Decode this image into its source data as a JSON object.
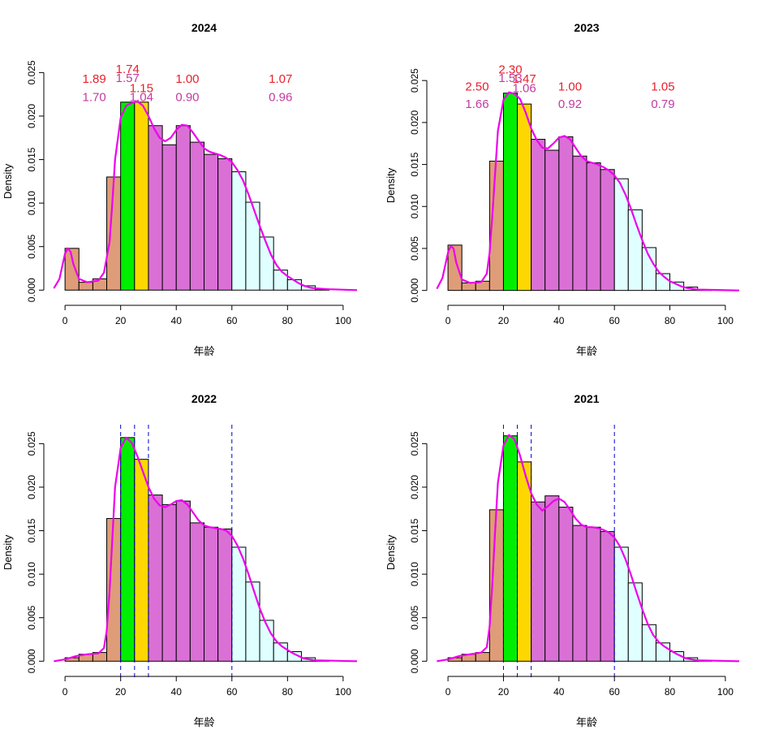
{
  "chart_data": [
    {
      "type": "histogram",
      "title": "2024",
      "xlabel": "年龄",
      "ylabel": "Density",
      "xlim": [
        0,
        105
      ],
      "ylim": [
        0,
        0.025
      ],
      "xticks": [
        "0",
        "20",
        "40",
        "60",
        "80",
        "100"
      ],
      "yticks": [
        "0.000",
        "0.005",
        "0.010",
        "0.015",
        "0.020",
        "0.025"
      ],
      "bin_edges": [
        0,
        5,
        10,
        15,
        20,
        25,
        30,
        35,
        40,
        45,
        50,
        55,
        60,
        65,
        70,
        75,
        80,
        85,
        90,
        95
      ],
      "densities": [
        0.0048,
        0.0009,
        0.0013,
        0.013,
        0.0216,
        0.0216,
        0.0189,
        0.0167,
        0.0189,
        0.017,
        0.0156,
        0.0151,
        0.0136,
        0.0101,
        0.0061,
        0.0023,
        0.0012,
        0.0005,
        0.0001
      ],
      "bin_colors": [
        "#df9c78",
        "#df9c78",
        "#df9c78",
        "#df9c78",
        "#00ee00",
        "#ffd700",
        "#da70d6",
        "#da70d6",
        "#da70d6",
        "#da70d6",
        "#da70d6",
        "#da70d6",
        "#e0ffff",
        "#e0ffff",
        "#e0ffff",
        "#e0ffff",
        "#e0ffff",
        "#e0ffff",
        "#e0ffff"
      ],
      "density_curve": [
        [
          -4,
          0.0002
        ],
        [
          -2,
          0.0013
        ],
        [
          0,
          0.0042
        ],
        [
          1,
          0.0048
        ],
        [
          2,
          0.0044
        ],
        [
          3,
          0.003
        ],
        [
          5,
          0.0013
        ],
        [
          8,
          0.0009
        ],
        [
          12,
          0.0011
        ],
        [
          14,
          0.002
        ],
        [
          16,
          0.0055
        ],
        [
          17,
          0.01
        ],
        [
          18,
          0.015
        ],
        [
          20,
          0.0198
        ],
        [
          22,
          0.0212
        ],
        [
          24,
          0.0215
        ],
        [
          26,
          0.0217
        ],
        [
          28,
          0.0212
        ],
        [
          30,
          0.02
        ],
        [
          32,
          0.0186
        ],
        [
          34,
          0.0175
        ],
        [
          36,
          0.0171
        ],
        [
          38,
          0.0175
        ],
        [
          40,
          0.0184
        ],
        [
          42,
          0.019
        ],
        [
          44,
          0.0189
        ],
        [
          46,
          0.0181
        ],
        [
          48,
          0.0172
        ],
        [
          50,
          0.0163
        ],
        [
          52,
          0.0159
        ],
        [
          54,
          0.0157
        ],
        [
          56,
          0.0155
        ],
        [
          58,
          0.0152
        ],
        [
          60,
          0.0147
        ],
        [
          62,
          0.0138
        ],
        [
          64,
          0.0126
        ],
        [
          66,
          0.011
        ],
        [
          68,
          0.0092
        ],
        [
          70,
          0.0074
        ],
        [
          72,
          0.0057
        ],
        [
          74,
          0.0041
        ],
        [
          76,
          0.0029
        ],
        [
          78,
          0.0021
        ],
        [
          80,
          0.0016
        ],
        [
          82,
          0.0012
        ],
        [
          84,
          0.0008
        ],
        [
          86,
          0.0005
        ],
        [
          88,
          0.0003
        ],
        [
          90,
          0.0002
        ],
        [
          95,
          0.0001
        ],
        [
          105,
          0.0
        ]
      ],
      "curve_color": "#ee00ee",
      "vlines": [],
      "annotations_red": [
        {
          "text": "1.89",
          "x": 10.5,
          "y": 0.0243
        },
        {
          "text": "1.74",
          "x": 22.5,
          "y": 0.0254
        },
        {
          "text": "1.15",
          "x": 27.5,
          "y": 0.0232
        },
        {
          "text": "1.00",
          "x": 44,
          "y": 0.0243
        },
        {
          "text": "1.07",
          "x": 77.5,
          "y": 0.0243
        }
      ],
      "annotations_mag": [
        {
          "text": "1.70",
          "x": 10.5,
          "y": 0.0222
        },
        {
          "text": "1.57",
          "x": 22.5,
          "y": 0.0244
        },
        {
          "text": "1.04",
          "x": 27.5,
          "y": 0.0222
        },
        {
          "text": "0.90",
          "x": 44,
          "y": 0.0222
        },
        {
          "text": "0.96",
          "x": 77.5,
          "y": 0.0222
        }
      ]
    },
    {
      "type": "histogram",
      "title": "2023",
      "xlabel": "年龄",
      "ylabel": "Density",
      "xlim": [
        0,
        105
      ],
      "ylim": [
        0,
        0.025
      ],
      "xticks": [
        "0",
        "20",
        "40",
        "60",
        "80",
        "100"
      ],
      "yticks": [
        "0.000",
        "0.005",
        "0.010",
        "0.015",
        "0.020",
        "0.025"
      ],
      "bin_edges": [
        0,
        5,
        10,
        15,
        20,
        25,
        30,
        35,
        40,
        45,
        50,
        55,
        60,
        65,
        70,
        75,
        80,
        85,
        90,
        95
      ],
      "densities": [
        0.0054,
        0.0009,
        0.0011,
        0.0154,
        0.0235,
        0.0222,
        0.018,
        0.0167,
        0.0183,
        0.016,
        0.0152,
        0.0144,
        0.0133,
        0.0096,
        0.0051,
        0.002,
        0.001,
        0.0004,
        0.0001
      ],
      "bin_colors": [
        "#df9c78",
        "#df9c78",
        "#df9c78",
        "#df9c78",
        "#00ee00",
        "#ffd700",
        "#da70d6",
        "#da70d6",
        "#da70d6",
        "#da70d6",
        "#da70d6",
        "#da70d6",
        "#e0ffff",
        "#e0ffff",
        "#e0ffff",
        "#e0ffff",
        "#e0ffff",
        "#e0ffff",
        "#e0ffff"
      ],
      "density_curve": [
        [
          -4,
          0.0002
        ],
        [
          -2,
          0.0015
        ],
        [
          0,
          0.0045
        ],
        [
          1,
          0.0053
        ],
        [
          2,
          0.005
        ],
        [
          3,
          0.0033
        ],
        [
          5,
          0.0013
        ],
        [
          8,
          0.0009
        ],
        [
          12,
          0.001
        ],
        [
          14,
          0.002
        ],
        [
          15,
          0.0045
        ],
        [
          16,
          0.009
        ],
        [
          17,
          0.014
        ],
        [
          18,
          0.019
        ],
        [
          20,
          0.0227
        ],
        [
          22,
          0.0236
        ],
        [
          24,
          0.0234
        ],
        [
          26,
          0.0228
        ],
        [
          28,
          0.0212
        ],
        [
          30,
          0.0193
        ],
        [
          32,
          0.0179
        ],
        [
          34,
          0.017
        ],
        [
          36,
          0.0169
        ],
        [
          38,
          0.0175
        ],
        [
          40,
          0.0182
        ],
        [
          42,
          0.0184
        ],
        [
          44,
          0.018
        ],
        [
          46,
          0.017
        ],
        [
          48,
          0.016
        ],
        [
          50,
          0.0154
        ],
        [
          52,
          0.0152
        ],
        [
          54,
          0.015
        ],
        [
          56,
          0.0147
        ],
        [
          58,
          0.0143
        ],
        [
          60,
          0.0137
        ],
        [
          62,
          0.0128
        ],
        [
          64,
          0.0114
        ],
        [
          66,
          0.0097
        ],
        [
          68,
          0.0078
        ],
        [
          70,
          0.006
        ],
        [
          72,
          0.0044
        ],
        [
          74,
          0.0032
        ],
        [
          76,
          0.0022
        ],
        [
          78,
          0.0016
        ],
        [
          80,
          0.0011
        ],
        [
          82,
          0.0008
        ],
        [
          84,
          0.0005
        ],
        [
          86,
          0.0003
        ],
        [
          90,
          0.0001
        ],
        [
          105,
          0.0
        ]
      ],
      "curve_color": "#ee00ee",
      "vlines": [],
      "annotations_red": [
        {
          "text": "2.50",
          "x": 10.5,
          "y": 0.0243
        },
        {
          "text": "2.30",
          "x": 22.5,
          "y": 0.0263
        },
        {
          "text": "1.47",
          "x": 27.5,
          "y": 0.0252
        },
        {
          "text": "1.00",
          "x": 44,
          "y": 0.0243
        },
        {
          "text": "1.05",
          "x": 77.5,
          "y": 0.0243
        }
      ],
      "annotations_mag": [
        {
          "text": "1.66",
          "x": 10.5,
          "y": 0.0222
        },
        {
          "text": "1.53",
          "x": 22.5,
          "y": 0.0253
        },
        {
          "text": "1.06",
          "x": 27.5,
          "y": 0.0241
        },
        {
          "text": "0.92",
          "x": 44,
          "y": 0.0222
        },
        {
          "text": "0.79",
          "x": 77.5,
          "y": 0.0222
        }
      ]
    },
    {
      "type": "histogram",
      "title": "2022",
      "xlabel": "年龄",
      "ylabel": "Density",
      "xlim": [
        0,
        105
      ],
      "ylim": [
        0,
        0.025
      ],
      "xticks": [
        "0",
        "20",
        "40",
        "60",
        "80",
        "100"
      ],
      "yticks": [
        "0.000",
        "0.005",
        "0.010",
        "0.015",
        "0.020",
        "0.025"
      ],
      "bin_edges": [
        0,
        5,
        10,
        15,
        20,
        25,
        30,
        35,
        40,
        45,
        50,
        55,
        60,
        65,
        70,
        75,
        80,
        85,
        90,
        95
      ],
      "densities": [
        0.0004,
        0.0008,
        0.001,
        0.0164,
        0.0257,
        0.0232,
        0.0191,
        0.018,
        0.0184,
        0.0159,
        0.0154,
        0.0152,
        0.0131,
        0.0091,
        0.0047,
        0.0021,
        0.0011,
        0.0004,
        0.0001
      ],
      "bin_colors": [
        "#df9c78",
        "#df9c78",
        "#df9c78",
        "#df9c78",
        "#00ee00",
        "#ffd700",
        "#da70d6",
        "#da70d6",
        "#da70d6",
        "#da70d6",
        "#da70d6",
        "#da70d6",
        "#e0ffff",
        "#e0ffff",
        "#e0ffff",
        "#e0ffff",
        "#e0ffff",
        "#e0ffff",
        "#e0ffff"
      ],
      "density_curve": [
        [
          -4,
          0.0
        ],
        [
          0,
          0.0002
        ],
        [
          4,
          0.0006
        ],
        [
          8,
          0.0008
        ],
        [
          12,
          0.0009
        ],
        [
          14,
          0.0015
        ],
        [
          15,
          0.0035
        ],
        [
          16,
          0.008
        ],
        [
          17,
          0.014
        ],
        [
          18,
          0.02
        ],
        [
          20,
          0.0245
        ],
        [
          22,
          0.0257
        ],
        [
          24,
          0.0251
        ],
        [
          26,
          0.0236
        ],
        [
          28,
          0.0218
        ],
        [
          30,
          0.02
        ],
        [
          32,
          0.0187
        ],
        [
          34,
          0.0179
        ],
        [
          36,
          0.0177
        ],
        [
          38,
          0.018
        ],
        [
          40,
          0.0184
        ],
        [
          42,
          0.0185
        ],
        [
          44,
          0.018
        ],
        [
          46,
          0.0171
        ],
        [
          48,
          0.0162
        ],
        [
          50,
          0.0156
        ],
        [
          52,
          0.0154
        ],
        [
          54,
          0.0153
        ],
        [
          56,
          0.0152
        ],
        [
          58,
          0.015
        ],
        [
          60,
          0.0144
        ],
        [
          62,
          0.0133
        ],
        [
          64,
          0.0118
        ],
        [
          66,
          0.01
        ],
        [
          68,
          0.008
        ],
        [
          70,
          0.0061
        ],
        [
          72,
          0.0045
        ],
        [
          74,
          0.0032
        ],
        [
          76,
          0.0023
        ],
        [
          78,
          0.0017
        ],
        [
          80,
          0.0013
        ],
        [
          82,
          0.0009
        ],
        [
          84,
          0.0006
        ],
        [
          86,
          0.0003
        ],
        [
          90,
          0.0001
        ],
        [
          105,
          0.0
        ]
      ],
      "curve_color": "#ee00ee",
      "vlines": [
        20,
        25,
        30,
        60
      ],
      "annotations_red": [],
      "annotations_mag": []
    },
    {
      "type": "histogram",
      "title": "2021",
      "xlabel": "年龄",
      "ylabel": "Density",
      "xlim": [
        0,
        105
      ],
      "ylim": [
        0,
        0.025
      ],
      "xticks": [
        "0",
        "20",
        "40",
        "60",
        "80",
        "100"
      ],
      "yticks": [
        "0.000",
        "0.005",
        "0.010",
        "0.015",
        "0.020",
        "0.025"
      ],
      "bin_edges": [
        0,
        5,
        10,
        15,
        20,
        25,
        30,
        35,
        40,
        45,
        50,
        55,
        60,
        65,
        70,
        75,
        80,
        85,
        90,
        95
      ],
      "densities": [
        0.0004,
        0.0008,
        0.001,
        0.0174,
        0.0259,
        0.0229,
        0.0183,
        0.019,
        0.0177,
        0.0156,
        0.0154,
        0.0149,
        0.0131,
        0.009,
        0.0042,
        0.0021,
        0.0011,
        0.0004,
        0.0001
      ],
      "bin_colors": [
        "#df9c78",
        "#df9c78",
        "#df9c78",
        "#df9c78",
        "#00ee00",
        "#ffd700",
        "#da70d6",
        "#da70d6",
        "#da70d6",
        "#da70d6",
        "#da70d6",
        "#da70d6",
        "#e0ffff",
        "#e0ffff",
        "#e0ffff",
        "#e0ffff",
        "#e0ffff",
        "#e0ffff",
        "#e0ffff"
      ],
      "density_curve": [
        [
          -4,
          0.0
        ],
        [
          0,
          0.0002
        ],
        [
          4,
          0.0006
        ],
        [
          8,
          0.0008
        ],
        [
          12,
          0.001
        ],
        [
          14,
          0.0016
        ],
        [
          15,
          0.004
        ],
        [
          16,
          0.009
        ],
        [
          17,
          0.015
        ],
        [
          18,
          0.0205
        ],
        [
          20,
          0.0248
        ],
        [
          22,
          0.026
        ],
        [
          24,
          0.0255
        ],
        [
          26,
          0.0236
        ],
        [
          28,
          0.0213
        ],
        [
          30,
          0.0193
        ],
        [
          32,
          0.018
        ],
        [
          34,
          0.0173
        ],
        [
          36,
          0.0178
        ],
        [
          38,
          0.0184
        ],
        [
          40,
          0.0187
        ],
        [
          42,
          0.0183
        ],
        [
          44,
          0.0174
        ],
        [
          46,
          0.0164
        ],
        [
          48,
          0.0157
        ],
        [
          50,
          0.0154
        ],
        [
          52,
          0.0154
        ],
        [
          54,
          0.0153
        ],
        [
          56,
          0.0151
        ],
        [
          58,
          0.0148
        ],
        [
          60,
          0.0142
        ],
        [
          62,
          0.0132
        ],
        [
          64,
          0.0117
        ],
        [
          66,
          0.0099
        ],
        [
          68,
          0.0079
        ],
        [
          70,
          0.006
        ],
        [
          72,
          0.0043
        ],
        [
          74,
          0.003
        ],
        [
          76,
          0.0022
        ],
        [
          78,
          0.0017
        ],
        [
          80,
          0.0013
        ],
        [
          82,
          0.0009
        ],
        [
          84,
          0.0006
        ],
        [
          86,
          0.0003
        ],
        [
          90,
          0.0001
        ],
        [
          105,
          0.0
        ]
      ],
      "curve_color": "#ee00ee",
      "vlines": [
        20,
        25,
        30,
        60
      ],
      "annotations_red": [],
      "annotations_mag": []
    }
  ],
  "colors": {
    "bar_outline": "#000000",
    "vline": "#0000cd",
    "ann_red": "#e8202a",
    "ann_mag": "#c23aa0"
  }
}
